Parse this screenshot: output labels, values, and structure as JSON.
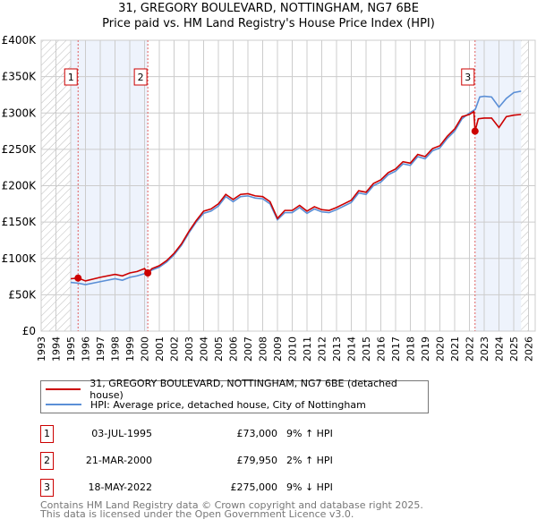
{
  "title_line1": "31, GREGORY BOULEVARD, NOTTINGHAM, NG7 6BE",
  "title_line2": "Price paid vs. HM Land Registry's House Price Index (HPI)",
  "chart_data": {
    "type": "line",
    "title": "31, GREGORY BOULEVARD, NOTTINGHAM, NG7 6BE - Price paid vs. HM Land Registry's House Price Index (HPI)",
    "xlim": [
      1993,
      2026
    ],
    "ylim": [
      0,
      400000
    ],
    "xticks": [
      "1993",
      "1994",
      "1995",
      "1996",
      "1997",
      "1998",
      "1999",
      "2000",
      "2001",
      "2002",
      "2003",
      "2004",
      "2005",
      "2006",
      "2007",
      "2008",
      "2009",
      "2010",
      "2011",
      "2012",
      "2013",
      "2014",
      "2015",
      "2016",
      "2017",
      "2018",
      "2019",
      "2020",
      "2021",
      "2022",
      "2023",
      "2024",
      "2025",
      "2026"
    ],
    "yticks": [
      {
        "v": 0,
        "label": "£0"
      },
      {
        "v": 50000,
        "label": "£50K"
      },
      {
        "v": 100000,
        "label": "£100K"
      },
      {
        "v": 150000,
        "label": "£150K"
      },
      {
        "v": 200000,
        "label": "£200K"
      },
      {
        "v": 250000,
        "label": "£250K"
      },
      {
        "v": 300000,
        "label": "£300K"
      },
      {
        "v": 350000,
        "label": "£350K"
      },
      {
        "v": 400000,
        "label": "£400K"
      }
    ],
    "colors": {
      "property": "#cc0000",
      "hpi": "#5b8fd6",
      "shade": "#eef3fc",
      "hatch": "#bbbbbb"
    },
    "hatched_ranges": [
      [
        1993,
        1995
      ],
      [
        2025.5,
        2026
      ]
    ],
    "shaded_ranges": [
      [
        1995,
        2000.22
      ],
      [
        2022.38,
        2025.5
      ]
    ],
    "series": [
      {
        "name": "HPI",
        "color": "#5b8fd6",
        "x": [
          1995,
          1995.5,
          1996,
          1997,
          1998,
          1998.5,
          1999,
          1999.5,
          2000,
          2000.5,
          2001,
          2001.5,
          2002,
          2002.5,
          2003,
          2003.5,
          2004,
          2004.5,
          2005,
          2005.5,
          2006,
          2006.5,
          2007,
          2007.5,
          2008,
          2008.5,
          2009,
          2009.5,
          2010,
          2010.5,
          2011,
          2011.5,
          2012,
          2012.5,
          2013,
          2013.5,
          2014,
          2014.5,
          2015,
          2015.5,
          2016,
          2016.5,
          2017,
          2017.5,
          2018,
          2018.5,
          2019,
          2019.5,
          2020,
          2020.5,
          2021,
          2021.5,
          2022,
          2022.4,
          2022.7,
          2023,
          2023.5,
          2024,
          2024.5,
          2025,
          2025.5
        ],
        "y": [
          67,
          66,
          64,
          68,
          72,
          70,
          74,
          76,
          79,
          84,
          88,
          95,
          105,
          118,
          135,
          150,
          162,
          165,
          172,
          185,
          178,
          185,
          186,
          183,
          182,
          175,
          153,
          163,
          163,
          170,
          162,
          168,
          164,
          163,
          167,
          172,
          177,
          190,
          188,
          200,
          205,
          215,
          220,
          230,
          228,
          240,
          237,
          248,
          252,
          265,
          275,
          292,
          300,
          305,
          322,
          323,
          322,
          308,
          320,
          328,
          330
        ]
      },
      {
        "name": "Property",
        "color": "#cc0000",
        "x": [
          1995,
          1995.5,
          1996,
          1997,
          1998,
          1998.5,
          1999,
          1999.5,
          2000,
          2000.22,
          2000.5,
          2001,
          2001.5,
          2002,
          2002.5,
          2003,
          2003.5,
          2004,
          2004.5,
          2005,
          2005.5,
          2006,
          2006.5,
          2007,
          2007.5,
          2008,
          2008.5,
          2009,
          2009.5,
          2010,
          2010.5,
          2011,
          2011.5,
          2012,
          2012.5,
          2013,
          2013.5,
          2014,
          2014.5,
          2015,
          2015.5,
          2016,
          2016.5,
          2017,
          2017.5,
          2018,
          2018.5,
          2019,
          2019.5,
          2020,
          2020.5,
          2021,
          2021.5,
          2022,
          2022.3,
          2022.38,
          2022.6,
          2023,
          2023.5,
          2024,
          2024.5,
          2025,
          2025.5
        ],
        "y": [
          72,
          73,
          69,
          74,
          78,
          76,
          80,
          82,
          86,
          79.95,
          86,
          90,
          97,
          107,
          120,
          137,
          152,
          165,
          168,
          175,
          188,
          181,
          188,
          189,
          186,
          185,
          178,
          155,
          166,
          166,
          173,
          165,
          171,
          167,
          166,
          170,
          175,
          180,
          193,
          191,
          203,
          208,
          218,
          223,
          233,
          231,
          243,
          240,
          251,
          255,
          268,
          278,
          295,
          298,
          302,
          275,
          292,
          293,
          293,
          280,
          295,
          297,
          298
        ]
      }
    ],
    "sales": [
      {
        "label": "1",
        "x": 1995.5,
        "y": 73000
      },
      {
        "label": "2",
        "x": 2000.22,
        "y": 79950
      },
      {
        "label": "3",
        "x": 2022.38,
        "y": 275000
      }
    ],
    "legend": {
      "placement": "below",
      "items": [
        "31, GREGORY BOULEVARD, NOTTINGHAM, NG7 6BE (detached house)",
        "HPI: Average price, detached house, City of Nottingham"
      ]
    }
  },
  "table": [
    {
      "n": "1",
      "date": "03-JUL-1995",
      "price": "£73,000",
      "hpi": "9% ↑ HPI"
    },
    {
      "n": "2",
      "date": "21-MAR-2000",
      "price": "£79,950",
      "hpi": "2% ↑ HPI"
    },
    {
      "n": "3",
      "date": "18-MAY-2022",
      "price": "£275,000",
      "hpi": "9% ↓ HPI"
    }
  ],
  "footer_line1": "Contains HM Land Registry data © Crown copyright and database right 2025.",
  "footer_line2": "This data is licensed under the Open Government Licence v3.0."
}
